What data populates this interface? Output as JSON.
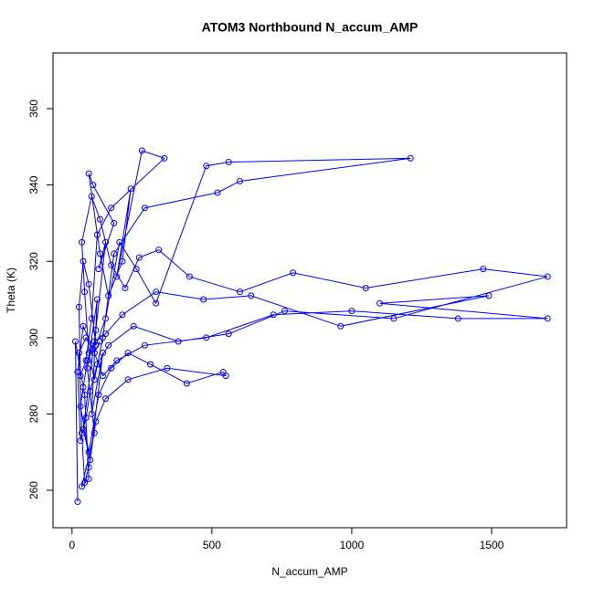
{
  "chart_data": {
    "type": "line",
    "title": "ATOM3 Northbound N_accum_AMP",
    "xlabel": "N_accum_AMP",
    "ylabel": "Theta (K)",
    "color": "#0000ff",
    "marker": "open-circle",
    "grid": false,
    "xlim": [
      -68,
      1768
    ],
    "ylim": [
      250.2,
      374.6
    ],
    "xticks": [
      0,
      500,
      1000,
      1500
    ],
    "yticks": [
      260,
      280,
      300,
      320,
      340,
      360
    ],
    "x": [
      20,
      12,
      45,
      60,
      35,
      80,
      55,
      90,
      70,
      110,
      65,
      40,
      85,
      120,
      95,
      150,
      75,
      60,
      100,
      130,
      180,
      210,
      160,
      250,
      330,
      140,
      90,
      70,
      50,
      30,
      25,
      40,
      60,
      85,
      120,
      170,
      230,
      300,
      480,
      560,
      1210,
      600,
      520,
      260,
      150,
      110,
      80,
      60,
      45,
      35,
      70,
      100,
      140,
      190,
      240,
      310,
      420,
      600,
      790,
      1050,
      1470,
      1700,
      1150,
      760,
      560,
      380,
      220,
      130,
      90,
      65,
      50,
      30,
      20,
      40,
      75,
      110,
      160,
      260,
      480,
      720,
      1000,
      1380,
      1700,
      1100,
      1490,
      960,
      640,
      470,
      300,
      180,
      120,
      80,
      55,
      40,
      30,
      60,
      95,
      140,
      200,
      280,
      410,
      540,
      550,
      340,
      200,
      120,
      85,
      60,
      45,
      35,
      25,
      50,
      80,
      100
    ],
    "values": [
      257,
      299,
      285,
      263,
      261,
      275,
      292,
      310,
      280,
      296,
      268,
      276,
      302,
      325,
      318,
      330,
      340,
      343,
      322,
      311,
      320,
      339,
      316,
      349,
      347,
      334,
      327,
      305,
      294,
      290,
      308,
      320,
      314,
      298,
      305,
      325,
      318,
      309,
      345,
      346,
      347,
      341,
      338,
      334,
      322,
      300,
      289,
      296,
      312,
      325,
      337,
      331,
      319,
      313,
      321,
      323,
      316,
      312,
      317,
      313,
      318,
      316,
      305,
      307,
      301,
      299,
      303,
      298,
      293,
      286,
      279,
      273,
      291,
      303,
      297,
      290,
      294,
      298,
      300,
      306,
      307,
      305,
      305,
      309,
      311,
      303,
      311,
      310,
      312,
      306,
      301,
      299,
      294,
      287,
      282,
      270,
      285,
      292,
      296,
      293,
      288,
      291,
      290,
      292,
      289,
      284,
      278,
      266,
      262,
      275,
      296,
      300,
      296,
      299
    ]
  }
}
